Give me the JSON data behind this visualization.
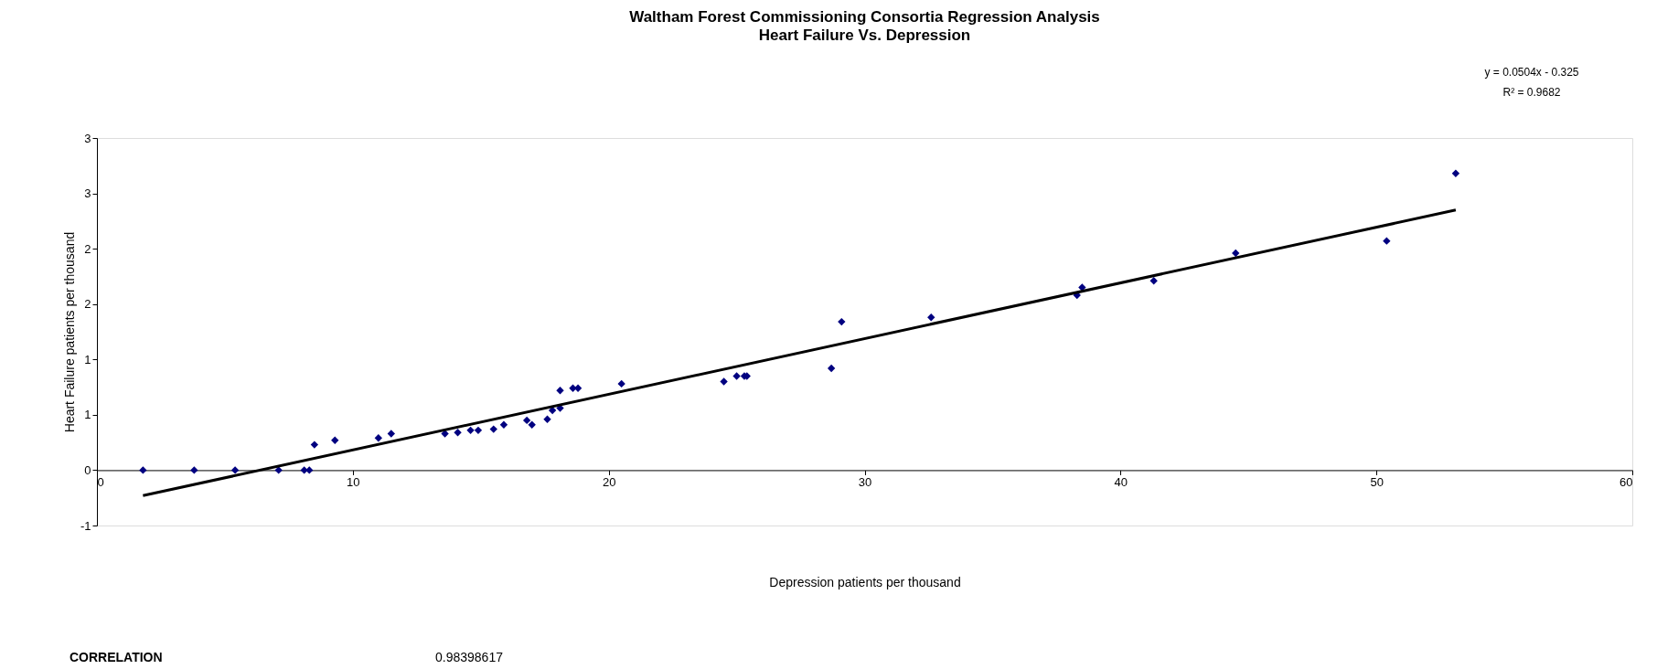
{
  "chart_data": {
    "type": "scatter",
    "title": "Waltham Forest Commissioning Consortia Regression Analysis",
    "subtitle": "Heart Failure Vs. Depression",
    "xlabel": "Depression patients per thousand",
    "ylabel": "Heart Failure patients per thousand",
    "xlim": [
      0,
      60
    ],
    "xticks": [
      0,
      10,
      20,
      30,
      40,
      50,
      60
    ],
    "ylim": [
      -0.5,
      3
    ],
    "yticks": [
      {
        "value": -0.5,
        "label": "-1"
      },
      0,
      {
        "value": 0.5,
        "label": "1"
      },
      1,
      {
        "value": 1.5,
        "label": "2"
      },
      2,
      {
        "value": 2.5,
        "label": "3"
      },
      3
    ],
    "grid": false,
    "marker": "diamond",
    "series": [
      {
        "color": "#000080",
        "x": [
          1.8,
          3.8,
          5.4,
          7.1,
          8.1,
          8.3,
          8.5,
          9.3,
          11.0,
          11.5,
          13.6,
          14.1,
          14.6,
          14.9,
          15.5,
          15.9,
          16.8,
          17.0,
          17.6,
          17.8,
          18.1,
          18.1,
          18.6,
          18.8,
          20.5,
          24.5,
          25.0,
          25.3,
          25.4,
          28.7,
          29.1,
          32.6,
          38.3,
          38.5,
          41.3,
          44.5,
          50.4,
          53.1
        ],
        "values": [
          0,
          0,
          0,
          0,
          0,
          0,
          0.23,
          0.27,
          0.29,
          0.33,
          0.33,
          0.34,
          0.36,
          0.36,
          0.37,
          0.41,
          0.45,
          0.41,
          0.46,
          0.54,
          0.56,
          0.72,
          0.74,
          0.74,
          0.78,
          0.8,
          0.85,
          0.85,
          0.85,
          0.92,
          1.34,
          1.38,
          1.58,
          1.65,
          1.71,
          1.96,
          2.07,
          2.68
        ]
      },
      {
        "type": "line",
        "color": "#000000",
        "marker": "none",
        "line_style": "solid",
        "x": [
          1.8,
          53.1
        ],
        "values": [
          -0.23,
          2.35
        ]
      }
    ],
    "annotations": [
      "y = 0.0504x - 0.325",
      "R² = 0.9682",
      "CORRELATION",
      "0.98398617"
    ]
  }
}
